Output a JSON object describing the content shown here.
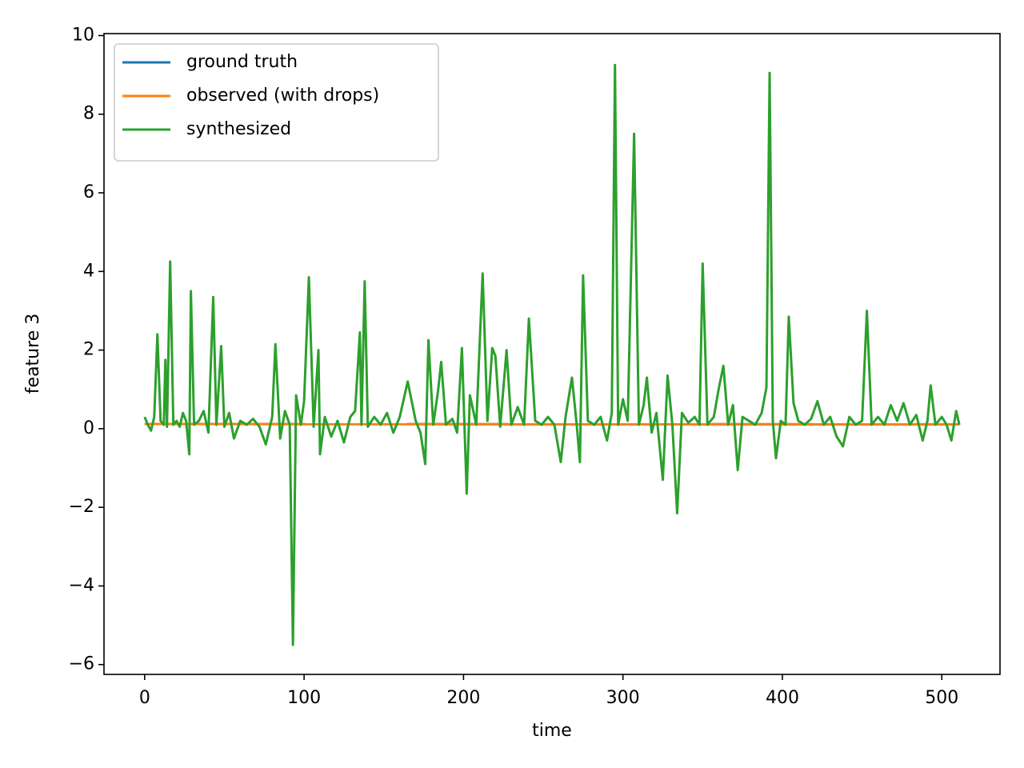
{
  "chart_data": {
    "type": "line",
    "x_label": "time",
    "y_label": "feature 3",
    "xlim": [
      -25.5,
      536.5
    ],
    "ylim": [
      -6.25,
      10.05
    ],
    "xticks": [
      0,
      100,
      200,
      300,
      400,
      500
    ],
    "yticks": [
      {
        "value": -6,
        "label": "−6"
      },
      {
        "value": -4,
        "label": "−4"
      },
      {
        "value": -2,
        "label": "−2"
      },
      0,
      2,
      4,
      6,
      8,
      10
    ],
    "legend": "upper left",
    "series": [
      {
        "name": "ground truth",
        "color": "#1f77b4",
        "x": [
          0,
          511
        ],
        "values": [
          0.12,
          0.11
        ]
      },
      {
        "name": "observed (with drops)",
        "color": "#ff7f0e",
        "x": [
          0,
          511
        ],
        "values": [
          0.12,
          0.11
        ]
      },
      {
        "name": "synthesized",
        "color": "#2ca02c",
        "x": [
          0,
          2,
          4,
          6,
          8,
          10,
          12,
          13,
          14,
          16,
          18,
          20,
          22,
          24,
          26,
          28,
          29,
          31,
          34,
          37,
          40,
          43,
          45,
          48,
          50,
          53,
          56,
          60,
          64,
          68,
          72,
          76,
          80,
          82,
          85,
          88,
          91,
          93,
          95,
          98,
          100,
          103,
          106,
          109,
          110,
          113,
          117,
          121,
          125,
          129,
          132,
          135,
          136,
          138,
          140,
          144,
          148,
          152,
          156,
          160,
          165,
          170,
          173,
          176,
          178,
          181,
          184,
          186,
          189,
          193,
          196,
          199,
          202,
          204,
          208,
          212,
          215,
          218,
          220,
          223,
          227,
          230,
          234,
          238,
          241,
          245,
          249,
          253,
          257,
          261,
          264,
          268,
          271,
          273,
          275,
          278,
          282,
          286,
          290,
          293,
          295,
          297,
          300,
          303,
          307,
          310,
          313,
          315,
          318,
          321,
          325,
          328,
          331,
          334,
          337,
          341,
          345,
          348,
          350,
          353,
          357,
          360,
          363,
          366,
          369,
          372,
          375,
          379,
          383,
          387,
          390,
          392,
          394,
          396,
          399,
          402,
          404,
          407,
          410,
          414,
          418,
          422,
          426,
          430,
          434,
          438,
          442,
          446,
          450,
          453,
          456,
          460,
          464,
          468,
          472,
          476,
          480,
          484,
          488,
          491,
          493,
          496,
          500,
          503,
          506,
          509,
          511
        ],
        "values": [
          0.3,
          0.1,
          -0.05,
          0.3,
          2.4,
          0.2,
          0.1,
          1.75,
          0.05,
          4.25,
          0.1,
          0.2,
          0.05,
          0.4,
          0.2,
          -0.65,
          3.5,
          0.1,
          0.2,
          0.45,
          -0.1,
          3.35,
          0.1,
          2.1,
          0.05,
          0.4,
          -0.25,
          0.2,
          0.1,
          0.25,
          0.05,
          -0.4,
          0.3,
          2.15,
          -0.25,
          0.45,
          0.1,
          -5.5,
          0.85,
          0.1,
          0.7,
          3.85,
          0.05,
          2.0,
          -0.65,
          0.3,
          -0.2,
          0.2,
          -0.35,
          0.3,
          0.45,
          2.45,
          0.1,
          3.75,
          0.05,
          0.3,
          0.1,
          0.4,
          -0.1,
          0.3,
          1.2,
          0.2,
          -0.1,
          -0.9,
          2.25,
          0.1,
          0.95,
          1.7,
          0.1,
          0.25,
          -0.1,
          2.05,
          -1.65,
          0.85,
          0.1,
          3.95,
          0.2,
          2.05,
          1.85,
          0.05,
          2.0,
          0.1,
          0.55,
          0.1,
          2.8,
          0.2,
          0.1,
          0.3,
          0.1,
          -0.85,
          0.3,
          1.3,
          0.1,
          -0.85,
          3.9,
          0.2,
          0.1,
          0.3,
          -0.3,
          0.4,
          9.25,
          0.1,
          0.75,
          0.2,
          7.5,
          0.1,
          0.6,
          1.3,
          -0.1,
          0.4,
          -1.3,
          1.35,
          0.1,
          -2.15,
          0.4,
          0.15,
          0.3,
          0.1,
          4.2,
          0.1,
          0.3,
          1.0,
          1.6,
          0.1,
          0.6,
          -1.05,
          0.3,
          0.2,
          0.1,
          0.4,
          1.05,
          9.05,
          0.2,
          -0.75,
          0.2,
          0.1,
          2.85,
          0.65,
          0.2,
          0.1,
          0.25,
          0.7,
          0.1,
          0.3,
          -0.2,
          -0.45,
          0.3,
          0.1,
          0.2,
          3.0,
          0.1,
          0.3,
          0.1,
          0.6,
          0.2,
          0.65,
          0.1,
          0.35,
          -0.3,
          0.2,
          1.1,
          0.1,
          0.3,
          0.1,
          -0.3,
          0.45,
          0.1
        ]
      }
    ]
  }
}
